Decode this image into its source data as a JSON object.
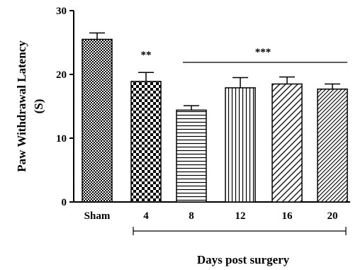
{
  "chart_data": {
    "type": "bar",
    "categories": [
      "Sham",
      "4",
      "8",
      "12",
      "16",
      "20"
    ],
    "values": [
      25.5,
      18.9,
      14.4,
      17.9,
      18.5,
      17.7
    ],
    "errors": [
      1.0,
      1.4,
      0.7,
      1.6,
      1.1,
      0.8
    ],
    "patterns": [
      "fine-checker",
      "large-checker",
      "horizontal-lines",
      "vertical-lines",
      "diagonal-lines",
      "diagonal-lines-dense"
    ],
    "ylabel_line1": "Paw Withdrawal Latency",
    "ylabel_line2": "(S)",
    "xlabel": "Days post surgery",
    "ylim": [
      0,
      30
    ],
    "yticks": [
      "0",
      "10",
      "20",
      "30"
    ],
    "annotations": {
      "single": {
        "text": "**",
        "category": "4"
      },
      "bracket": {
        "text": "***",
        "from": "8",
        "to": "20"
      }
    }
  }
}
